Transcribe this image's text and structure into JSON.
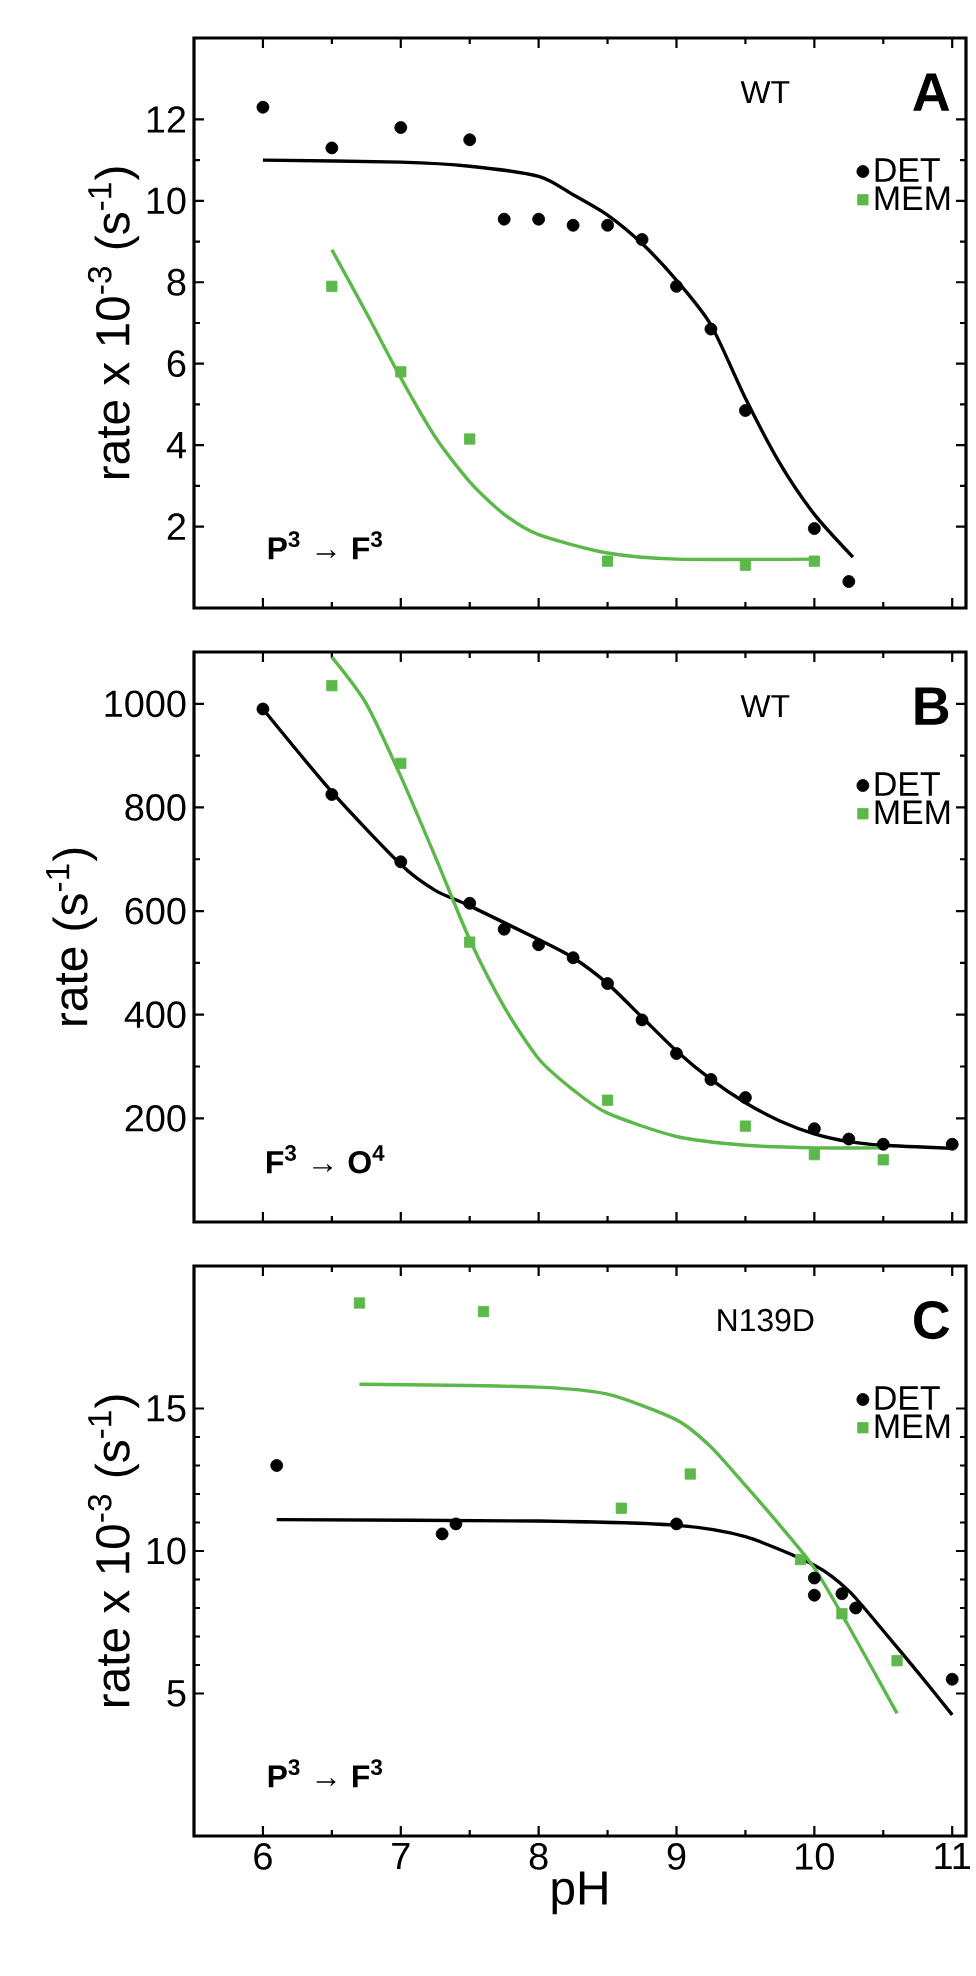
{
  "chart_data": [
    {
      "type": "scatter",
      "ylabel": "rate x 10$^{-3}$ (s$^{-1}$)",
      "xlim": [
        5.5,
        11.1
      ],
      "ylim": [
        0,
        14
      ],
      "xticks": [
        6,
        7,
        8,
        9,
        10,
        11
      ],
      "yticks": [
        2,
        4,
        6,
        8,
        10,
        12
      ],
      "tick_labels": "y",
      "legend": "top right",
      "annotations": [
        "WT",
        "A",
        "P$^{3}$ → F$^{3}$"
      ],
      "series": [
        {
          "name": "DET",
          "color": "#000000",
          "marker": "circle",
          "x": [
            6,
            6.5,
            7,
            7.5,
            7.75,
            8,
            8.25,
            8.5,
            8.75,
            9,
            9.25,
            9.5,
            10,
            10.25
          ],
          "values": [
            12.3,
            11.3,
            11.8,
            11.5,
            9.55,
            9.55,
            9.4,
            9.4,
            9.05,
            7.9,
            6.85,
            4.85,
            1.95,
            0.65
          ]
        },
        {
          "name": "MEM",
          "color": "#5cb84a",
          "marker": "square",
          "x": [
            6.5,
            7,
            7.5,
            8.5,
            9.5,
            10
          ],
          "values": [
            7.9,
            5.8,
            4.15,
            1.15,
            1.05,
            1.15
          ]
        },
        {
          "type": "line",
          "color": "#000000",
          "x": [
            6,
            7,
            7.5,
            8,
            8.25,
            8.5,
            8.75,
            9,
            9.25,
            9.5,
            9.75,
            10,
            10.28
          ],
          "values": [
            11.0,
            10.95,
            10.85,
            10.6,
            10.15,
            9.65,
            8.95,
            8.05,
            6.95,
            5.15,
            3.55,
            2.3,
            1.25
          ]
        },
        {
          "type": "line",
          "color": "#5cb84a",
          "x": [
            6.5,
            6.75,
            7,
            7.25,
            7.5,
            7.75,
            8,
            8.5,
            9,
            10
          ],
          "values": [
            8.8,
            7.25,
            5.65,
            4.2,
            3.1,
            2.3,
            1.8,
            1.35,
            1.2,
            1.2
          ]
        }
      ]
    },
    {
      "type": "scatter",
      "ylabel": "rate (s$^{-1}$)",
      "xlim": [
        5.5,
        11.1
      ],
      "ylim": [
        0,
        1100
      ],
      "xticks": [
        6,
        7,
        8,
        9,
        10,
        11
      ],
      "yticks": [
        200,
        400,
        600,
        800,
        1000
      ],
      "tick_labels": "y",
      "legend": "top right",
      "annotations": [
        "WT",
        "B",
        "F$^{3}$ → O$^{4}$"
      ],
      "series": [
        {
          "name": "DET",
          "color": "#000000",
          "marker": "circle",
          "x": [
            6,
            6.5,
            7,
            7.5,
            7.75,
            8,
            8.25,
            8.5,
            8.75,
            9,
            9.25,
            9.5,
            10,
            10.25,
            10.5,
            11
          ],
          "values": [
            990,
            825,
            695,
            615,
            565,
            535,
            510,
            460,
            390,
            325,
            275,
            240,
            180,
            160,
            150,
            150
          ]
        },
        {
          "name": "MEM",
          "color": "#5cb84a",
          "marker": "square",
          "x": [
            6.5,
            7,
            7.5,
            8.5,
            9.5,
            10,
            10.5
          ],
          "values": [
            1035,
            885,
            540,
            235,
            185,
            130,
            120
          ]
        },
        {
          "type": "line",
          "color": "#000000",
          "x": [
            6,
            6.5,
            7,
            7.25,
            7.5,
            8,
            8.25,
            8.5,
            8.75,
            9,
            9.25,
            9.5,
            9.75,
            10,
            10.25,
            10.5,
            11
          ],
          "values": [
            990,
            830,
            690,
            640,
            610,
            545,
            510,
            460,
            395,
            330,
            275,
            230,
            195,
            170,
            155,
            148,
            142
          ]
        },
        {
          "type": "line",
          "color": "#5cb84a",
          "x": [
            6.5,
            6.75,
            7,
            7.25,
            7.5,
            7.75,
            8,
            8.25,
            8.5,
            9,
            9.5,
            10,
            10.5
          ],
          "values": [
            1090,
            1000,
            860,
            705,
            545,
            415,
            315,
            255,
            210,
            165,
            148,
            143,
            143
          ]
        }
      ]
    },
    {
      "type": "scatter",
      "xlabel": "pH",
      "ylabel": "rate x 10$^{-3}$ (s$^{-1}$)",
      "xlim": [
        5.5,
        11.1
      ],
      "ylim": [
        0,
        20
      ],
      "xticks": [
        6,
        7,
        8,
        9,
        10,
        11
      ],
      "yticks": [
        5,
        10,
        15
      ],
      "legend": "top right",
      "annotations": [
        "N139D",
        "C",
        "P$^{3}$ → F$^{3}$"
      ],
      "series": [
        {
          "name": "DET",
          "color": "#000000",
          "marker": "circle",
          "x": [
            6.1,
            7.3,
            7.4,
            9.0,
            10.0,
            10.0,
            10.2,
            10.3,
            11.0
          ],
          "values": [
            13.0,
            10.6,
            10.95,
            10.95,
            9.05,
            8.45,
            8.5,
            8.0,
            5.5
          ]
        },
        {
          "name": "MEM",
          "color": "#5cb84a",
          "marker": "square",
          "x": [
            6.7,
            7.6,
            8.6,
            9.1,
            9.9,
            10.2,
            10.6
          ],
          "values": [
            18.7,
            18.4,
            11.5,
            12.7,
            9.7,
            7.8,
            6.15
          ]
        },
        {
          "type": "line",
          "color": "#000000",
          "x": [
            6.1,
            8,
            9,
            9.5,
            10,
            10.25,
            10.5,
            10.75,
            11
          ],
          "values": [
            11.1,
            11.05,
            10.9,
            10.5,
            9.5,
            8.6,
            7.2,
            5.75,
            4.25
          ]
        },
        {
          "type": "line",
          "color": "#5cb84a",
          "x": [
            6.7,
            8,
            8.5,
            9,
            9.25,
            9.5,
            9.75,
            10,
            10.25,
            10.6
          ],
          "values": [
            15.85,
            15.75,
            15.5,
            14.6,
            13.65,
            12.3,
            10.9,
            9.4,
            7.35,
            4.3
          ]
        }
      ]
    }
  ]
}
